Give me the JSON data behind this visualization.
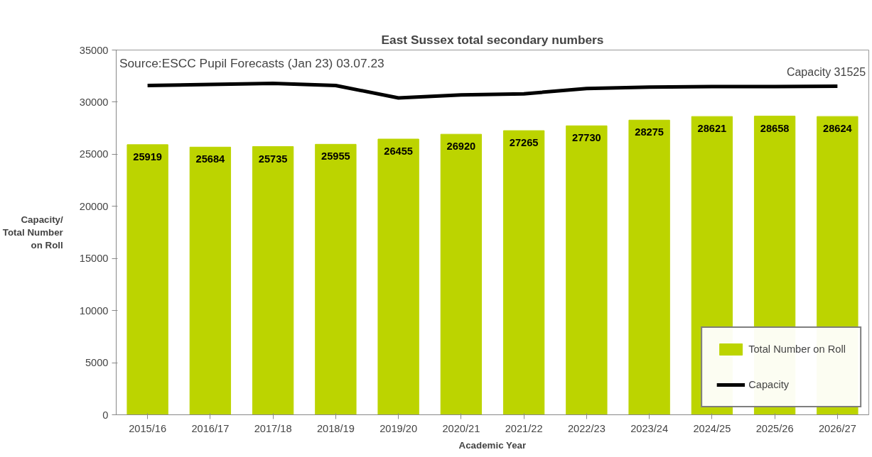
{
  "chart_data": {
    "type": "bar",
    "title": "East Sussex total secondary numbers",
    "xlabel": "Academic Year",
    "ylabel": "Capacity/\nTotal Number\non Roll",
    "categories": [
      "2015/16",
      "2016/17",
      "2017/18",
      "2018/19",
      "2019/20",
      "2020/21",
      "2021/22",
      "2022/23",
      "2023/24",
      "2024/25",
      "2025/26",
      "2026/27"
    ],
    "series": [
      {
        "name": "Total Number on Roll",
        "color": "#bcd400",
        "values": [
          25919,
          25684,
          25735,
          25955,
          26455,
          26920,
          27265,
          27730,
          28275,
          28621,
          28658,
          28624
        ],
        "value_labels": [
          "25919",
          "25684",
          "25735",
          "25955",
          "26455",
          "26920",
          "27265",
          "27730",
          "28275",
          "28621",
          "28658",
          "28624"
        ]
      },
      {
        "name": "Capacity",
        "type": "line",
        "color": "#000000",
        "values": [
          31600,
          31700,
          31800,
          31600,
          30400,
          30700,
          30800,
          31300,
          31450,
          31500,
          31500,
          31525
        ]
      }
    ],
    "ylim": [
      0,
      35000
    ],
    "yticks": [
      0,
      5000,
      10000,
      15000,
      20000,
      25000,
      30000,
      35000
    ],
    "grid": false,
    "legend": "bottom right",
    "annotations": [
      "Source:ESCC Pupil Forecasts (Jan 23) 03.07.23",
      {
        "text": "Capacity 31525",
        "x": "2026/27",
        "y": 31525
      }
    ]
  }
}
